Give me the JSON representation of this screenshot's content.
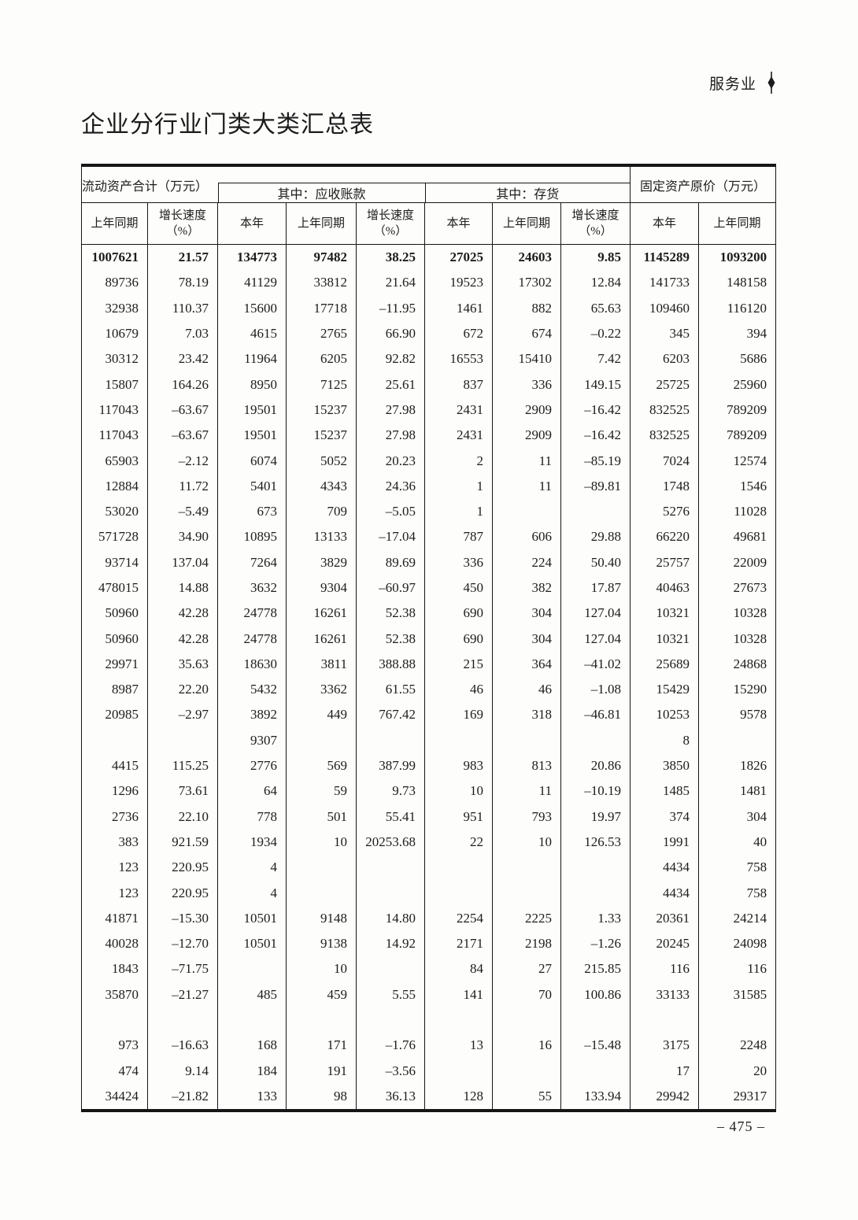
{
  "page": {
    "section_label": "服务业",
    "title": "企业分行业门类大类汇总表",
    "page_number": "– 475 –"
  },
  "table": {
    "group_headers": {
      "current_assets": "流动资产合计（万元）",
      "receivables": "其中：应收账款",
      "inventory": "其中：存货",
      "fixed_assets": "固定资产原价（万元）"
    },
    "sub_headers": [
      {
        "label": "上年同期"
      },
      {
        "label": "增长速度",
        "label2": "（%）"
      },
      {
        "label": "本年"
      },
      {
        "label": "上年同期"
      },
      {
        "label": "增长速度",
        "label2": "（%）"
      },
      {
        "label": "本年"
      },
      {
        "label": "上年同期"
      },
      {
        "label": "增长速度",
        "label2": "（%）"
      },
      {
        "label": "本年"
      },
      {
        "label": "上年同期"
      }
    ],
    "bold_row": 0,
    "rows": [
      [
        "1007621",
        "21.57",
        "134773",
        "97482",
        "38.25",
        "27025",
        "24603",
        "9.85",
        "1145289",
        "1093200"
      ],
      [
        "89736",
        "78.19",
        "41129",
        "33812",
        "21.64",
        "19523",
        "17302",
        "12.84",
        "141733",
        "148158"
      ],
      [
        "32938",
        "110.37",
        "15600",
        "17718",
        "–11.95",
        "1461",
        "882",
        "65.63",
        "109460",
        "116120"
      ],
      [
        "10679",
        "7.03",
        "4615",
        "2765",
        "66.90",
        "672",
        "674",
        "–0.22",
        "345",
        "394"
      ],
      [
        "30312",
        "23.42",
        "11964",
        "6205",
        "92.82",
        "16553",
        "15410",
        "7.42",
        "6203",
        "5686"
      ],
      [
        "15807",
        "164.26",
        "8950",
        "7125",
        "25.61",
        "837",
        "336",
        "149.15",
        "25725",
        "25960"
      ],
      [
        "117043",
        "–63.67",
        "19501",
        "15237",
        "27.98",
        "2431",
        "2909",
        "–16.42",
        "832525",
        "789209"
      ],
      [
        "117043",
        "–63.67",
        "19501",
        "15237",
        "27.98",
        "2431",
        "2909",
        "–16.42",
        "832525",
        "789209"
      ],
      [
        "65903",
        "–2.12",
        "6074",
        "5052",
        "20.23",
        "2",
        "11",
        "–85.19",
        "7024",
        "12574"
      ],
      [
        "12884",
        "11.72",
        "5401",
        "4343",
        "24.36",
        "1",
        "11",
        "–89.81",
        "1748",
        "1546"
      ],
      [
        "53020",
        "–5.49",
        "673",
        "709",
        "–5.05",
        "1",
        "",
        "",
        "5276",
        "11028"
      ],
      [
        "571728",
        "34.90",
        "10895",
        "13133",
        "–17.04",
        "787",
        "606",
        "29.88",
        "66220",
        "49681"
      ],
      [
        "93714",
        "137.04",
        "7264",
        "3829",
        "89.69",
        "336",
        "224",
        "50.40",
        "25757",
        "22009"
      ],
      [
        "478015",
        "14.88",
        "3632",
        "9304",
        "–60.97",
        "450",
        "382",
        "17.87",
        "40463",
        "27673"
      ],
      [
        "50960",
        "42.28",
        "24778",
        "16261",
        "52.38",
        "690",
        "304",
        "127.04",
        "10321",
        "10328"
      ],
      [
        "50960",
        "42.28",
        "24778",
        "16261",
        "52.38",
        "690",
        "304",
        "127.04",
        "10321",
        "10328"
      ],
      [
        "29971",
        "35.63",
        "18630",
        "3811",
        "388.88",
        "215",
        "364",
        "–41.02",
        "25689",
        "24868"
      ],
      [
        "8987",
        "22.20",
        "5432",
        "3362",
        "61.55",
        "46",
        "46",
        "–1.08",
        "15429",
        "15290"
      ],
      [
        "20985",
        "–2.97",
        "3892",
        "449",
        "767.42",
        "169",
        "318",
        "–46.81",
        "10253",
        "9578"
      ],
      [
        "",
        "",
        "9307",
        "",
        "",
        "",
        "",
        "",
        "8",
        ""
      ],
      [
        "4415",
        "115.25",
        "2776",
        "569",
        "387.99",
        "983",
        "813",
        "20.86",
        "3850",
        "1826"
      ],
      [
        "1296",
        "73.61",
        "64",
        "59",
        "9.73",
        "10",
        "11",
        "–10.19",
        "1485",
        "1481"
      ],
      [
        "2736",
        "22.10",
        "778",
        "501",
        "55.41",
        "951",
        "793",
        "19.97",
        "374",
        "304"
      ],
      [
        "383",
        "921.59",
        "1934",
        "10",
        "20253.68",
        "22",
        "10",
        "126.53",
        "1991",
        "40"
      ],
      [
        "123",
        "220.95",
        "4",
        "",
        "",
        "",
        "",
        "",
        "4434",
        "758"
      ],
      [
        "123",
        "220.95",
        "4",
        "",
        "",
        "",
        "",
        "",
        "4434",
        "758"
      ],
      [
        "41871",
        "–15.30",
        "10501",
        "9148",
        "14.80",
        "2254",
        "2225",
        "1.33",
        "20361",
        "24214"
      ],
      [
        "40028",
        "–12.70",
        "10501",
        "9138",
        "14.92",
        "2171",
        "2198",
        "–1.26",
        "20245",
        "24098"
      ],
      [
        "1843",
        "–71.75",
        "",
        "10",
        "",
        "84",
        "27",
        "215.85",
        "116",
        "116"
      ],
      [
        "35870",
        "–21.27",
        "485",
        "459",
        "5.55",
        "141",
        "70",
        "100.86",
        "33133",
        "31585"
      ],
      [
        "",
        "",
        "",
        "",
        "",
        "",
        "",
        "",
        "",
        ""
      ],
      [
        "973",
        "–16.63",
        "168",
        "171",
        "–1.76",
        "13",
        "16",
        "–15.48",
        "3175",
        "2248"
      ],
      [
        "474",
        "9.14",
        "184",
        "191",
        "–3.56",
        "",
        "",
        "",
        "17",
        "20"
      ],
      [
        "34424",
        "–21.82",
        "133",
        "98",
        "36.13",
        "128",
        "55",
        "133.94",
        "29942",
        "29317"
      ]
    ]
  }
}
